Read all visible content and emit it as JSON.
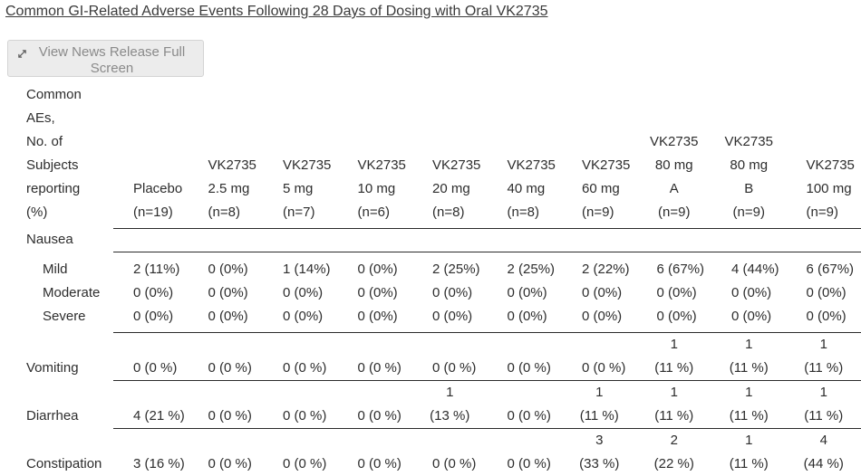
{
  "title": "Common GI-Related Adverse Events Following 28 Days of Dosing with Oral VK2735",
  "toolbar": {
    "fullscreen_button_label": "View News Release Full Screen",
    "fullscreen_icon": "expand-arrows-icon"
  },
  "table": {
    "corner_header": "Common\nAEs,\nNo. of\nSubjects\nreporting\n(%)",
    "column_headers": [
      "Placebo\n(n=19)",
      "VK2735\n2.5 mg\n(n=8)",
      "VK2735\n5 mg\n(n=7)",
      "VK2735\n10 mg\n(n=6)",
      "VK2735\n20 mg\n(n=8)",
      "VK2735\n40 mg\n(n=8)",
      "VK2735\n60 mg\n(n=9)",
      "VK2735\n80 mg\nA\n(n=9)",
      "VK2735\n80 mg\nB\n(n=9)",
      "VK2735\n100 mg\n(n=9)"
    ],
    "rows": [
      {
        "label": "Nausea",
        "cells": [
          "",
          "",
          "",
          "",
          "",
          "",
          "",
          "",
          "",
          ""
        ]
      },
      {
        "label": "Mild",
        "cells": [
          "2 (11%)",
          "0 (0%)",
          "1 (14%)",
          "0 (0%)",
          "2 (25%)",
          "2 (25%)",
          "2 (22%)",
          "6 (67%)",
          "4 (44%)",
          "6 (67%)"
        ]
      },
      {
        "label": "Moderate",
        "cells": [
          "0 (0%)",
          "0 (0%)",
          "0 (0%)",
          "0 (0%)",
          "0 (0%)",
          "0 (0%)",
          "0 (0%)",
          "0 (0%)",
          "0 (0%)",
          "0 (0%)"
        ]
      },
      {
        "label": "Severe",
        "cells": [
          "0 (0%)",
          "0 (0%)",
          "0 (0%)",
          "0 (0%)",
          "0 (0%)",
          "0 (0%)",
          "0 (0%)",
          "0 (0%)",
          "0 (0%)",
          "0 (0%)"
        ]
      },
      {
        "label": "Vomiting",
        "cells": [
          "0 (0 %)",
          "0 (0 %)",
          "0 (0 %)",
          "0 (0 %)",
          "0 (0 %)",
          "0 (0 %)",
          "0 (0 %)",
          "1\n(11 %)",
          "1\n(11 %)",
          "1\n(11 %)"
        ]
      },
      {
        "label": "Diarrhea",
        "cells": [
          "4 (21 %)",
          "0 (0 %)",
          "0 (0 %)",
          "0 (0 %)",
          "1\n(13 %)",
          "0 (0 %)",
          "1\n(11 %)",
          "1\n(11 %)",
          "1\n(11 %)",
          "1\n(11 %)"
        ]
      },
      {
        "label": "Constipation",
        "cells": [
          "3 (16 %)",
          "0 (0 %)",
          "0 (0 %)",
          "0 (0 %)",
          "0 (0 %)",
          "0 (0 %)",
          "3\n(33 %)",
          "2\n(22 %)",
          "1\n(11 %)",
          "4\n(44 %)"
        ]
      }
    ]
  },
  "colors": {
    "text": "#2d2d2d",
    "rule_line": "#2a2a2a",
    "title_text": "#3a3a3a",
    "button_background": "#ececec",
    "button_border": "#d4d4d4",
    "button_text": "#8a8a8a",
    "icon_stroke": "#5c5c5c"
  }
}
